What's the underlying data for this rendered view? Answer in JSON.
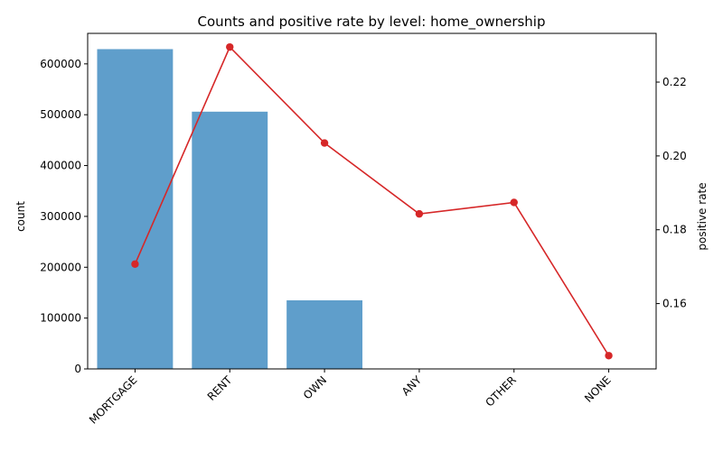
{
  "chart_data": {
    "type": "bar",
    "title": "Counts and positive rate by level: home_ownership",
    "xlabel": "",
    "ylabel": "count",
    "y2label": "positive rate",
    "categories": [
      "MORTGAGE",
      "RENT",
      "OWN",
      "ANY",
      "OTHER",
      "NONE"
    ],
    "series": [
      {
        "type": "bar",
        "axis": "left",
        "color": "#5f9ecb",
        "values": [
          629000,
          506000,
          135000,
          300,
          150,
          50
        ]
      },
      {
        "type": "line",
        "axis": "right",
        "color": "#d62728",
        "marker": "circle",
        "values": [
          0.1707,
          0.2295,
          0.2035,
          0.1843,
          0.1874,
          0.1459
        ]
      }
    ],
    "ylim": [
      0,
      660000
    ],
    "y_ticks": [
      0,
      100000,
      200000,
      300000,
      400000,
      500000,
      600000
    ],
    "y2lim": [
      0.1423,
      0.2332
    ],
    "y2_ticks": [
      0.16,
      0.18,
      0.2,
      0.22
    ],
    "y2_tick_labels": [
      "0.16",
      "0.18",
      "0.20",
      "0.22"
    ],
    "grid": false,
    "legend": "none"
  }
}
